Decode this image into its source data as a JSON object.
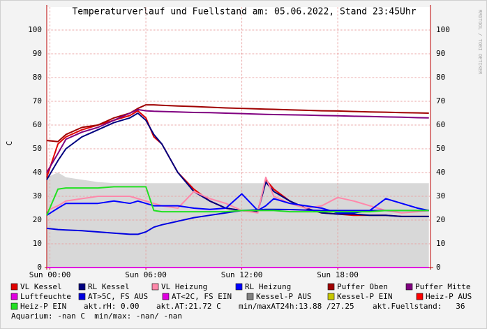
{
  "chart_data": {
    "type": "line",
    "title": "Temperaturverlauf und Fuellstand am: 05.06.2022, Stand 23:45Uhr",
    "y_label": "C",
    "watermark": "RRDTOOL / TOBI OETIKER",
    "x": [
      -0.2,
      0.5,
      1,
      2,
      3,
      4,
      5,
      5.5,
      6,
      6.5,
      7,
      8,
      9,
      10,
      11,
      12,
      13,
      13.5,
      14,
      15,
      16,
      17,
      18,
      19,
      20,
      21,
      22,
      23,
      23.7
    ],
    "xlim": [
      -0.2,
      23.8
    ],
    "xticks": [
      {
        "value": 0,
        "label": "Sun 00:00"
      },
      {
        "value": 6,
        "label": "Sun 06:00"
      },
      {
        "value": 12,
        "label": "Sun 12:00"
      },
      {
        "value": 18,
        "label": "Sun 18:00"
      }
    ],
    "ylim": [
      0,
      109.7
    ],
    "yticks": [
      0,
      10,
      20,
      30,
      40,
      50,
      60,
      70,
      80,
      90,
      100
    ],
    "grid": true,
    "area": {
      "color": "#d8d8d8",
      "values": [
        38,
        40,
        38,
        37,
        36,
        35.5,
        35.5,
        35.5,
        35.5,
        35.5,
        35.5,
        35.5,
        35.5,
        35.5,
        35.5,
        35.5,
        35.5,
        35.5,
        35.5,
        35.5,
        35.5,
        35.5,
        35.5,
        35.5,
        35.5,
        35.5,
        35.5,
        35.5,
        35.5
      ]
    },
    "series": [
      {
        "name": "VL Kessel",
        "color": "#e00000",
        "values": [
          38,
          52,
          55,
          58,
          60,
          62,
          64,
          66,
          63,
          55,
          52,
          40,
          33,
          28,
          25,
          24,
          23.5,
          37,
          33,
          28,
          25,
          23,
          22.5,
          22,
          22,
          22,
          21.5,
          21.5,
          21.5
        ]
      },
      {
        "name": "RL Kessel",
        "color": "#000080",
        "values": [
          37,
          45,
          50,
          55,
          58,
          61,
          63,
          65,
          62,
          56,
          52,
          40,
          32,
          28,
          25,
          24,
          23.5,
          36,
          32,
          28,
          25,
          23,
          22.5,
          22.5,
          22,
          22,
          21.5,
          21.5,
          21.5
        ]
      },
      {
        "name": "VL Heizung",
        "color": "#ff88aa",
        "values": [
          24,
          26,
          28,
          29,
          30,
          30,
          30,
          29,
          28,
          27,
          26,
          25,
          32,
          29,
          27,
          24,
          23,
          38,
          30,
          27,
          25,
          26,
          29.5,
          28,
          26,
          24,
          23,
          23.5,
          24
        ]
      },
      {
        "name": "RL Heizung",
        "color": "#0000ff",
        "values": [
          22,
          25,
          27,
          27,
          27,
          28,
          27,
          28,
          27,
          26,
          26,
          26,
          25,
          24.5,
          25,
          31,
          24,
          26,
          29,
          27,
          26,
          25,
          23,
          23,
          24,
          29,
          27,
          25,
          24
        ]
      },
      {
        "name": "Puffer Oben",
        "color": "#a00000",
        "values": [
          53.5,
          53,
          56,
          59,
          60,
          63,
          65,
          67,
          68.5,
          68.5,
          68.3,
          68,
          67.8,
          67.5,
          67.2,
          67,
          66.8,
          66.7,
          66.6,
          66.4,
          66.2,
          66,
          65.9,
          65.7,
          65.5,
          65.4,
          65.2,
          65.1,
          65
        ]
      },
      {
        "name": "Puffer Mitte",
        "color": "#800080",
        "values": [
          40,
          48,
          54,
          57,
          59,
          62,
          65,
          66.5,
          66,
          65.8,
          65.7,
          65.5,
          65.3,
          65.2,
          65,
          64.8,
          64.6,
          64.5,
          64.4,
          64.3,
          64.2,
          64,
          63.9,
          63.7,
          63.6,
          63.4,
          63.3,
          63.1,
          63
        ]
      },
      {
        "name": "Luftfeuchte",
        "color": "#e000e0",
        "values": [
          0,
          0,
          0,
          0,
          0,
          0,
          0,
          0,
          0,
          0,
          0,
          0,
          0,
          0,
          0,
          0,
          0,
          0,
          0,
          0,
          0,
          0,
          0,
          0,
          0,
          0,
          0,
          0,
          0
        ]
      },
      {
        "name": "AT>5C, FS AUS",
        "color": "#0000e0",
        "values": [
          16.5,
          16,
          15.8,
          15.5,
          15,
          14.5,
          14,
          14,
          15,
          17,
          18,
          19.5,
          21,
          22,
          23,
          24,
          24.3,
          24.5,
          24.5,
          24.4,
          24.2,
          24,
          24,
          24,
          24,
          24,
          24,
          24,
          24
        ]
      },
      {
        "name": "AT<2C, FS EIN",
        "color": "#e000e0",
        "values": [
          null,
          null,
          null,
          null,
          null,
          null,
          null,
          null,
          null,
          null,
          null,
          null,
          null,
          null,
          null,
          null,
          null,
          null,
          null,
          null,
          null,
          null,
          null,
          null,
          null,
          null,
          null,
          null,
          null
        ]
      },
      {
        "name": "Kessel-P AUS",
        "color": "#808080",
        "values": [
          null,
          null,
          null,
          null,
          null,
          null,
          null,
          null,
          null,
          null,
          null,
          null,
          null,
          null,
          null,
          null,
          null,
          null,
          null,
          null,
          null,
          null,
          null,
          null,
          null,
          null,
          null,
          null,
          null
        ]
      },
      {
        "name": "Kessel-P EIN",
        "color": "#c8c800",
        "values": [
          null,
          null,
          null,
          null,
          null,
          null,
          null,
          null,
          null,
          null,
          null,
          null,
          null,
          null,
          null,
          null,
          null,
          null,
          null,
          null,
          null,
          null,
          null,
          null,
          null,
          null,
          null,
          null,
          null
        ]
      },
      {
        "name": "Heiz-P AUS",
        "color": "#ff0000",
        "values": [
          null,
          null,
          null,
          null,
          null,
          null,
          null,
          null,
          null,
          null,
          null,
          null,
          null,
          null,
          null,
          null,
          null,
          null,
          null,
          null,
          null,
          null,
          null,
          null,
          null,
          null,
          null,
          null,
          null
        ]
      },
      {
        "name": "Heiz-P EIN",
        "color": "#22e022",
        "values": [
          22,
          33,
          33.5,
          33.5,
          33.5,
          34,
          34,
          34,
          34,
          24,
          23.5,
          23.5,
          23.5,
          23.5,
          23.5,
          24,
          24,
          24,
          24,
          23.5,
          23.5,
          23.5,
          23.5,
          23.5,
          23.5,
          24,
          24,
          24,
          24
        ]
      }
    ],
    "notes": [
      "akt.rH: 0.00",
      "akt.AT:21.72 C",
      "min/maxAT24h:13.88 /27.25",
      "akt.Fuellstand:   36",
      "Aquarium: -nan C  min/max: -nan/ -nan"
    ]
  }
}
